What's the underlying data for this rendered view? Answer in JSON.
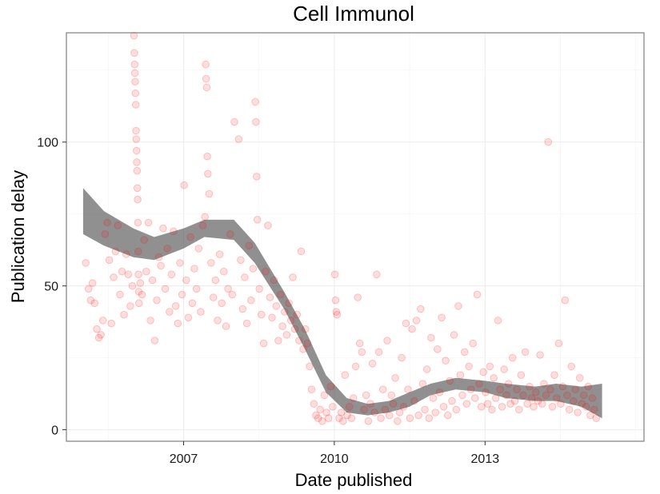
{
  "chart_data": {
    "type": "scatter",
    "title": "Cell Immunol",
    "xlabel": "Date published",
    "ylabel": "Publication delay",
    "x_ticks": [
      "2007",
      "2010",
      "2013"
    ],
    "y_ticks": [
      "0",
      "50",
      "100"
    ],
    "xlim": [
      "2004-09-01",
      "2016-03-01"
    ],
    "ylim": [
      -4,
      138
    ],
    "grid": true,
    "legend": "none",
    "point_color": "#ff0000",
    "point_opacity": 0.13,
    "smooth_band_color": "#555555",
    "points": [
      [
        "2005-01-20",
        58
      ],
      [
        "2005-02-10",
        49
      ],
      [
        "2005-02-25",
        45
      ],
      [
        "2005-03-10",
        51
      ],
      [
        "2005-03-25",
        44
      ],
      [
        "2005-04-10",
        35
      ],
      [
        "2005-04-25",
        32
      ],
      [
        "2005-05-10",
        33
      ],
      [
        "2005-05-25",
        38
      ],
      [
        "2005-06-10",
        68
      ],
      [
        "2005-06-25",
        72
      ],
      [
        "2005-07-10",
        59
      ],
      [
        "2005-07-25",
        37
      ],
      [
        "2005-08-10",
        53
      ],
      [
        "2005-08-25",
        62
      ],
      [
        "2005-09-10",
        71
      ],
      [
        "2005-09-25",
        47
      ],
      [
        "2005-10-10",
        55
      ],
      [
        "2005-10-25",
        40
      ],
      [
        "2005-11-10",
        61
      ],
      [
        "2005-11-25",
        54
      ],
      [
        "2005-12-10",
        43
      ],
      [
        "2005-12-25",
        50
      ],
      [
        "2006-01-05",
        137
      ],
      [
        "2006-01-08",
        131
      ],
      [
        "2006-01-10",
        127
      ],
      [
        "2006-01-12",
        124
      ],
      [
        "2006-01-14",
        121
      ],
      [
        "2006-01-16",
        117
      ],
      [
        "2006-01-18",
        113
      ],
      [
        "2006-01-20",
        104
      ],
      [
        "2006-01-22",
        101
      ],
      [
        "2006-01-24",
        97
      ],
      [
        "2006-01-26",
        93
      ],
      [
        "2006-01-28",
        90
      ],
      [
        "2006-01-30",
        84
      ],
      [
        "2006-02-01",
        80
      ],
      [
        "2006-02-03",
        72
      ],
      [
        "2006-02-05",
        62
      ],
      [
        "2006-02-07",
        54
      ],
      [
        "2006-02-09",
        48
      ],
      [
        "2006-02-11",
        44
      ],
      [
        "2006-02-20",
        51
      ],
      [
        "2006-03-05",
        47
      ],
      [
        "2006-03-20",
        66
      ],
      [
        "2006-04-05",
        55
      ],
      [
        "2006-04-20",
        72
      ],
      [
        "2006-05-05",
        38
      ],
      [
        "2006-05-20",
        52
      ],
      [
        "2006-06-05",
        31
      ],
      [
        "2006-06-20",
        45
      ],
      [
        "2006-07-05",
        60
      ],
      [
        "2006-07-20",
        57
      ],
      [
        "2006-08-05",
        70
      ],
      [
        "2006-08-20",
        49
      ],
      [
        "2006-09-05",
        63
      ],
      [
        "2006-09-20",
        41
      ],
      [
        "2006-10-05",
        54
      ],
      [
        "2006-10-20",
        69
      ],
      [
        "2006-11-05",
        43
      ],
      [
        "2006-11-20",
        37
      ],
      [
        "2006-12-05",
        58
      ],
      [
        "2006-12-20",
        47
      ],
      [
        "2007-01-05",
        85
      ],
      [
        "2007-01-20",
        52
      ],
      [
        "2007-02-05",
        39
      ],
      [
        "2007-02-20",
        67
      ],
      [
        "2007-03-05",
        44
      ],
      [
        "2007-03-20",
        56
      ],
      [
        "2007-04-05",
        49
      ],
      [
        "2007-04-20",
        63
      ],
      [
        "2007-05-05",
        41
      ],
      [
        "2007-05-20",
        71
      ],
      [
        "2007-06-05",
        74
      ],
      [
        "2007-06-10",
        127
      ],
      [
        "2007-06-14",
        122
      ],
      [
        "2007-06-18",
        119
      ],
      [
        "2007-06-22",
        95
      ],
      [
        "2007-06-26",
        89
      ],
      [
        "2007-07-05",
        82
      ],
      [
        "2007-07-20",
        58
      ],
      [
        "2007-08-05",
        46
      ],
      [
        "2007-08-20",
        52
      ],
      [
        "2007-09-05",
        38
      ],
      [
        "2007-09-20",
        61
      ],
      [
        "2007-10-05",
        44
      ],
      [
        "2007-10-20",
        55
      ],
      [
        "2007-11-05",
        36
      ],
      [
        "2007-11-20",
        49
      ],
      [
        "2007-12-05",
        68
      ],
      [
        "2007-12-20",
        47
      ],
      [
        "2008-01-05",
        107
      ],
      [
        "2008-02-05",
        101
      ],
      [
        "2008-02-20",
        59
      ],
      [
        "2008-03-05",
        42
      ],
      [
        "2008-03-20",
        53
      ],
      [
        "2008-04-05",
        37
      ],
      [
        "2008-04-20",
        64
      ],
      [
        "2008-05-05",
        45
      ],
      [
        "2008-05-20",
        56
      ],
      [
        "2008-06-05",
        114
      ],
      [
        "2008-06-10",
        107
      ],
      [
        "2008-06-15",
        88
      ],
      [
        "2008-06-20",
        73
      ],
      [
        "2008-07-05",
        49
      ],
      [
        "2008-07-20",
        40
      ],
      [
        "2008-08-05",
        30
      ],
      [
        "2008-08-20",
        55
      ],
      [
        "2008-09-05",
        71
      ],
      [
        "2008-09-20",
        46
      ],
      [
        "2008-10-05",
        39
      ],
      [
        "2008-10-20",
        52
      ],
      [
        "2008-11-05",
        43
      ],
      [
        "2008-11-20",
        31
      ],
      [
        "2008-12-05",
        47
      ],
      [
        "2008-12-20",
        36
      ],
      [
        "2009-01-05",
        41
      ],
      [
        "2009-01-20",
        33
      ],
      [
        "2009-02-05",
        44
      ],
      [
        "2009-02-20",
        38
      ],
      [
        "2009-03-05",
        53
      ],
      [
        "2009-03-20",
        35
      ],
      [
        "2009-04-05",
        40
      ],
      [
        "2009-04-20",
        31
      ],
      [
        "2009-05-05",
        62
      ],
      [
        "2009-05-20",
        28
      ],
      [
        "2009-06-05",
        35
      ],
      [
        "2009-06-20",
        30
      ],
      [
        "2009-07-05",
        22
      ],
      [
        "2009-07-20",
        14
      ],
      [
        "2009-08-05",
        9
      ],
      [
        "2009-08-20",
        5
      ],
      [
        "2009-09-05",
        4
      ],
      [
        "2009-09-20",
        7
      ],
      [
        "2009-10-05",
        3
      ],
      [
        "2009-10-20",
        12
      ],
      [
        "2009-11-05",
        6
      ],
      [
        "2009-11-20",
        4
      ],
      [
        "2009-12-05",
        15
      ],
      [
        "2009-12-20",
        8
      ],
      [
        "2010-01-05",
        54
      ],
      [
        "2010-01-10",
        45
      ],
      [
        "2010-01-15",
        41
      ],
      [
        "2010-01-20",
        40
      ],
      [
        "2010-02-05",
        4
      ],
      [
        "2010-02-20",
        6
      ],
      [
        "2010-03-05",
        3
      ],
      [
        "2010-03-20",
        19
      ],
      [
        "2010-04-05",
        5
      ],
      [
        "2010-04-20",
        8
      ],
      [
        "2010-05-05",
        4
      ],
      [
        "2010-05-20",
        11
      ],
      [
        "2010-06-05",
        22
      ],
      [
        "2010-06-20",
        46
      ],
      [
        "2010-07-05",
        30
      ],
      [
        "2010-07-20",
        27
      ],
      [
        "2010-08-05",
        7
      ],
      [
        "2010-08-20",
        12
      ],
      [
        "2010-09-05",
        3
      ],
      [
        "2010-09-20",
        9
      ],
      [
        "2010-10-05",
        23
      ],
      [
        "2010-10-20",
        6
      ],
      [
        "2010-11-05",
        54
      ],
      [
        "2010-11-20",
        27
      ],
      [
        "2010-12-05",
        4
      ],
      [
        "2010-12-20",
        14
      ],
      [
        "2011-01-05",
        7
      ],
      [
        "2011-01-20",
        31
      ],
      [
        "2011-02-05",
        5
      ],
      [
        "2011-02-20",
        12
      ],
      [
        "2011-03-05",
        9
      ],
      [
        "2011-03-20",
        18
      ],
      [
        "2011-04-05",
        3
      ],
      [
        "2011-04-20",
        6
      ],
      [
        "2011-05-05",
        25
      ],
      [
        "2011-05-20",
        8
      ],
      [
        "2011-06-05",
        37
      ],
      [
        "2011-06-20",
        14
      ],
      [
        "2011-07-05",
        4
      ],
      [
        "2011-07-20",
        35
      ],
      [
        "2011-08-05",
        10
      ],
      [
        "2011-08-20",
        38
      ],
      [
        "2011-09-05",
        5
      ],
      [
        "2011-09-20",
        42
      ],
      [
        "2011-10-05",
        16
      ],
      [
        "2011-10-20",
        7
      ],
      [
        "2011-11-05",
        21
      ],
      [
        "2011-11-20",
        4
      ],
      [
        "2011-12-05",
        32
      ],
      [
        "2011-12-20",
        11
      ],
      [
        "2012-01-05",
        6
      ],
      [
        "2012-01-20",
        28
      ],
      [
        "2012-02-05",
        13
      ],
      [
        "2012-02-20",
        39
      ],
      [
        "2012-03-05",
        8
      ],
      [
        "2012-03-20",
        24
      ],
      [
        "2012-04-05",
        5
      ],
      [
        "2012-04-20",
        17
      ],
      [
        "2012-05-05",
        10
      ],
      [
        "2012-05-20",
        33
      ],
      [
        "2012-06-05",
        7
      ],
      [
        "2012-06-20",
        43
      ],
      [
        "2012-07-05",
        19
      ],
      [
        "2012-07-20",
        12
      ],
      [
        "2012-08-05",
        27
      ],
      [
        "2012-08-20",
        9
      ],
      [
        "2012-09-05",
        22
      ],
      [
        "2012-09-20",
        14
      ],
      [
        "2012-10-05",
        30
      ],
      [
        "2012-10-20",
        11
      ],
      [
        "2012-11-05",
        47
      ],
      [
        "2012-11-20",
        16
      ],
      [
        "2012-12-05",
        8
      ],
      [
        "2012-12-20",
        20
      ],
      [
        "2013-01-05",
        13
      ],
      [
        "2013-01-20",
        9
      ],
      [
        "2013-02-05",
        22
      ],
      [
        "2013-02-20",
        7
      ],
      [
        "2013-03-05",
        18
      ],
      [
        "2013-03-20",
        11
      ],
      [
        "2013-04-05",
        38
      ],
      [
        "2013-04-20",
        14
      ],
      [
        "2013-05-05",
        8
      ],
      [
        "2013-05-20",
        21
      ],
      [
        "2013-06-05",
        12
      ],
      [
        "2013-06-20",
        16
      ],
      [
        "2013-07-05",
        9
      ],
      [
        "2013-07-20",
        25
      ],
      [
        "2013-08-05",
        10
      ],
      [
        "2013-08-20",
        14
      ],
      [
        "2013-09-05",
        7
      ],
      [
        "2013-09-20",
        19
      ],
      [
        "2013-10-05",
        12
      ],
      [
        "2013-10-20",
        27
      ],
      [
        "2013-11-05",
        9
      ],
      [
        "2013-11-20",
        15
      ],
      [
        "2013-12-05",
        11
      ],
      [
        "2013-12-20",
        8
      ],
      [
        "2014-01-05",
        13
      ],
      [
        "2014-01-20",
        10
      ],
      [
        "2014-02-05",
        26
      ],
      [
        "2014-02-20",
        9
      ],
      [
        "2014-03-05",
        16
      ],
      [
        "2014-03-20",
        12
      ],
      [
        "2014-04-05",
        100
      ],
      [
        "2014-04-20",
        14
      ],
      [
        "2014-05-05",
        8
      ],
      [
        "2014-05-20",
        19
      ],
      [
        "2014-06-05",
        11
      ],
      [
        "2014-06-20",
        30
      ],
      [
        "2014-07-05",
        9
      ],
      [
        "2014-07-20",
        15
      ],
      [
        "2014-08-05",
        45
      ],
      [
        "2014-08-20",
        12
      ],
      [
        "2014-09-05",
        7
      ],
      [
        "2014-09-20",
        22
      ],
      [
        "2014-10-05",
        10
      ],
      [
        "2014-10-20",
        14
      ],
      [
        "2014-11-05",
        6
      ],
      [
        "2014-11-20",
        18
      ],
      [
        "2014-12-05",
        9
      ],
      [
        "2014-12-20",
        12
      ],
      [
        "2015-01-05",
        8
      ],
      [
        "2015-01-20",
        15
      ],
      [
        "2015-02-05",
        5
      ],
      [
        "2015-02-20",
        11
      ],
      [
        "2015-03-05",
        7
      ],
      [
        "2015-03-20",
        4
      ]
    ],
    "smooth_ci_band": [
      [
        "2005-01-01",
        68,
        84
      ],
      [
        "2005-06-01",
        64,
        76
      ],
      [
        "2006-01-01",
        60,
        70
      ],
      [
        "2006-06-01",
        59,
        67
      ],
      [
        "2007-01-01",
        63,
        70
      ],
      [
        "2007-06-01",
        67,
        73
      ],
      [
        "2008-01-01",
        66,
        73
      ],
      [
        "2008-06-01",
        58,
        65
      ],
      [
        "2009-01-01",
        42,
        48
      ],
      [
        "2009-06-01",
        28,
        35
      ],
      [
        "2009-11-01",
        13,
        19
      ],
      [
        "2010-04-01",
        6,
        11
      ],
      [
        "2010-09-01",
        5,
        9
      ],
      [
        "2011-02-01",
        6,
        10
      ],
      [
        "2011-07-01",
        8,
        13
      ],
      [
        "2011-12-01",
        12,
        16
      ],
      [
        "2012-06-01",
        14,
        18
      ],
      [
        "2013-01-01",
        13,
        17
      ],
      [
        "2013-06-01",
        11,
        16
      ],
      [
        "2014-01-01",
        10,
        15
      ],
      [
        "2014-06-01",
        10,
        16
      ],
      [
        "2014-12-01",
        8,
        15
      ],
      [
        "2015-05-01",
        4,
        16
      ]
    ]
  }
}
